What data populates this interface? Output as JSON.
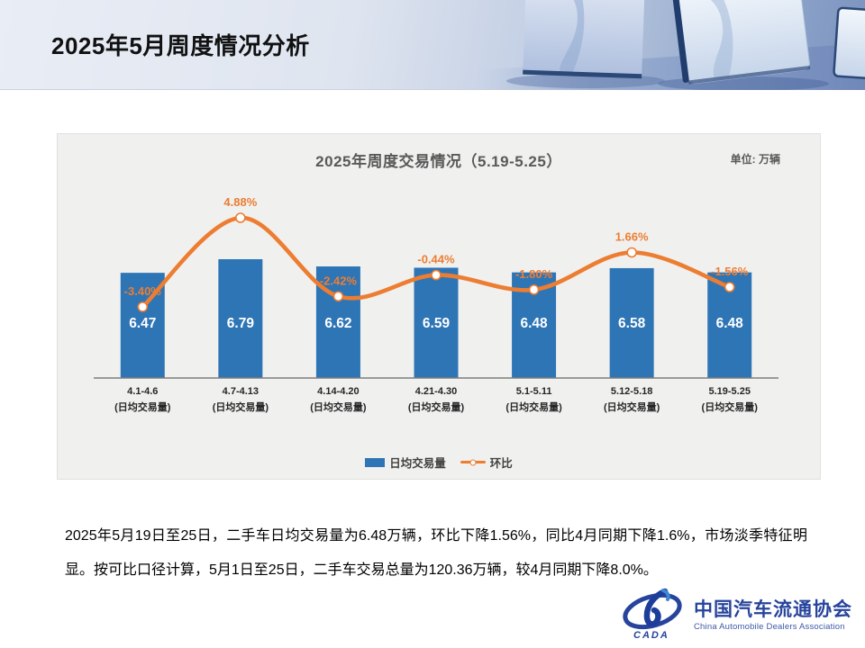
{
  "slide": {
    "title": "2025年5月周度情况分析",
    "body_text": "2025年5月19日至25日，二手车日均交易量为6.48万辆，环比下降1.56%，同比4月同期下降1.6%，市场淡季特征明显。按可比口径计算，5月1日至25日，二手车交易总量为120.36万辆，较4月同期下降8.0%。"
  },
  "chart": {
    "title": "2025年周度交易情况（5.19-5.25）",
    "unit_label": "单位: 万辆",
    "legend": {
      "bar_label": "日均交易量",
      "line_label": "环比"
    }
  },
  "chart_data": {
    "type": "bar",
    "combo": "bar+line",
    "title": "2025年周度交易情况（5.19-5.25）",
    "unit": "万辆",
    "categories": [
      "4.1-4.6",
      "4.7-4.13",
      "4.14-4.20",
      "4.21-4.30",
      "5.1-5.11",
      "5.12-5.18",
      "5.19-5.25"
    ],
    "category_sublabel": "(日均交易量)",
    "series": [
      {
        "name": "日均交易量",
        "type": "bar",
        "color": "#2E75B6",
        "values": [
          6.47,
          6.79,
          6.62,
          6.59,
          6.48,
          6.58,
          6.48
        ],
        "value_labels": [
          "6.47",
          "6.79",
          "6.62",
          "6.59",
          "6.48",
          "6.58",
          "6.48"
        ]
      },
      {
        "name": "环比",
        "type": "line",
        "color": "#ED7D31",
        "values": [
          -3.4,
          4.88,
          -2.42,
          -0.44,
          -1.8,
          1.66,
          -1.56
        ],
        "labels": [
          "-3.40%",
          "4.88%",
          "-2.42%",
          "-0.44%",
          "-1.80%",
          "1.66%",
          "-1.56%"
        ]
      }
    ],
    "bar_axis_min": 4.0,
    "grid": false,
    "legend_position": "bottom"
  },
  "logo": {
    "badge": "CADA",
    "cn": "中国汽车流通协会",
    "en": "China Automobile Dealers Association"
  },
  "colors": {
    "bar": "#2E75B6",
    "line": "#ED7D31",
    "panel_bg": "#F0F0EF",
    "axis": "#7F7F7F",
    "logo_blue": "#27449C"
  }
}
